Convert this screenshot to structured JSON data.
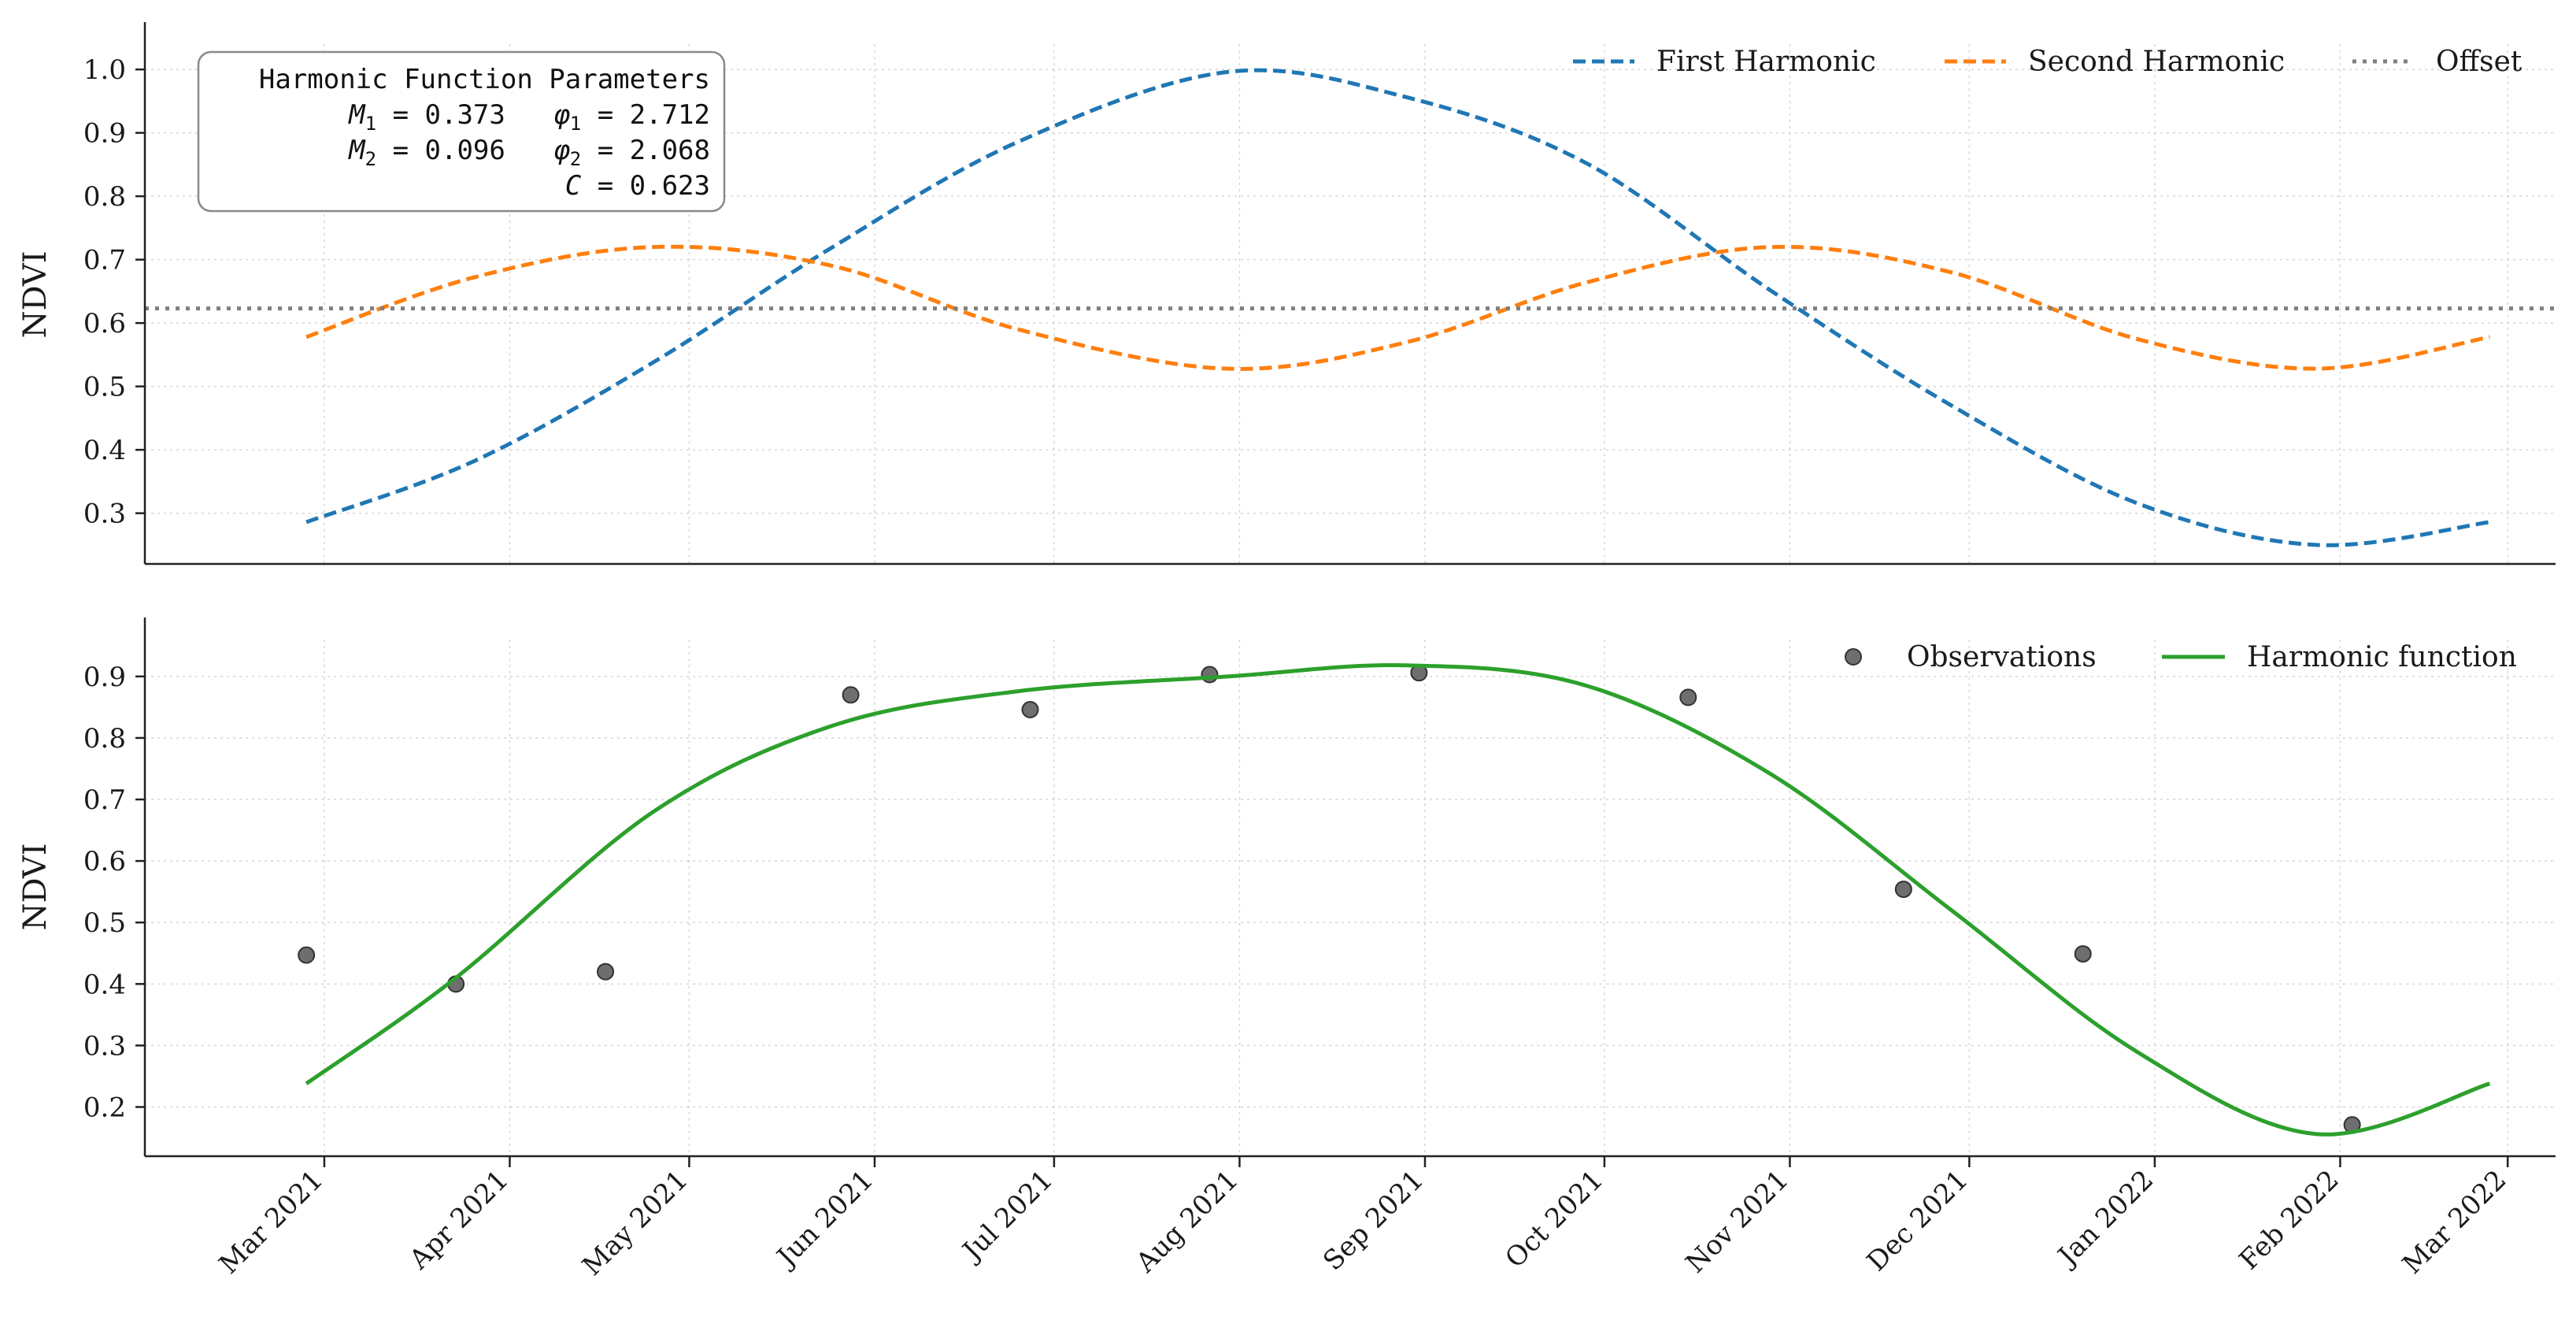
{
  "chart_data": [
    {
      "type": "line",
      "title": "",
      "xlabel": "",
      "ylabel": "NDVI",
      "ylim": [
        0.22,
        1.04
      ],
      "yticks": [
        0.3,
        0.4,
        0.5,
        0.6,
        0.7,
        0.8,
        0.9,
        1.0
      ],
      "ytick_labels": [
        "0.3",
        "0.4",
        "0.5",
        "0.6",
        "0.7",
        "0.8",
        "0.9",
        "1.0"
      ],
      "grid": true,
      "legend_position": "top-right",
      "x_start": "2021-02-26",
      "x_end": "2022-02-26",
      "series": [
        {
          "name": "First Harmonic",
          "style": "dashed",
          "color": "#1f77b4",
          "points": [
            [
              "2021-02-26",
              0.286
            ],
            [
              "2021-03-26",
              0.382
            ],
            [
              "2021-04-25",
              0.538
            ],
            [
              "2021-05-25",
              0.72
            ],
            [
              "2021-06-25",
              0.886
            ],
            [
              "2021-07-30",
              0.996
            ],
            [
              "2021-08-29",
              0.956
            ],
            [
              "2021-09-28",
              0.852
            ],
            [
              "2021-10-29",
              0.65
            ],
            [
              "2021-11-28",
              0.47
            ],
            [
              "2021-12-29",
              0.316
            ],
            [
              "2022-01-28",
              0.25
            ],
            [
              "2022-02-26",
              0.286
            ]
          ]
        },
        {
          "name": "Second Harmonic",
          "style": "dashed",
          "color": "#ff7f0e",
          "points": [
            [
              "2021-02-26",
              0.578
            ],
            [
              "2021-03-26",
              0.672
            ],
            [
              "2021-04-25",
              0.72
            ],
            [
              "2021-05-25",
              0.69
            ],
            [
              "2021-06-25",
              0.59
            ],
            [
              "2021-07-30",
              0.528
            ],
            [
              "2021-08-29",
              0.57
            ],
            [
              "2021-09-28",
              0.664
            ],
            [
              "2021-10-29",
              0.72
            ],
            [
              "2021-11-28",
              0.68
            ],
            [
              "2021-12-29",
              0.575
            ],
            [
              "2022-01-28",
              0.528
            ],
            [
              "2022-02-26",
              0.578
            ]
          ]
        },
        {
          "name": "Offset",
          "style": "dotted",
          "color": "#7f7f7f",
          "y_constant": 0.623
        }
      ],
      "annotation": {
        "title": "Harmonic Function Parameters",
        "line1": {
          "m_sym": "M",
          "m_sub": "1",
          "m_val": " = 0.373",
          "p_sym": "φ",
          "p_sub": "1",
          "p_val": " = 2.712"
        },
        "line2": {
          "m_sym": "M",
          "m_sub": "2",
          "m_val": " = 0.096",
          "p_sym": "φ",
          "p_sub": "2",
          "p_val": " = 2.068"
        },
        "line3": {
          "c_sym": "C",
          "c_val": " = 0.623"
        }
      }
    },
    {
      "type": "line",
      "title": "",
      "xlabel": "",
      "ylabel": "NDVI",
      "ylim": [
        0.12,
        0.96
      ],
      "yticks": [
        0.2,
        0.3,
        0.4,
        0.5,
        0.6,
        0.7,
        0.8,
        0.9
      ],
      "ytick_labels": [
        "0.2",
        "0.3",
        "0.4",
        "0.5",
        "0.6",
        "0.7",
        "0.8",
        "0.9"
      ],
      "grid": true,
      "legend_position": "top-right",
      "x_ticks": [
        "2021-03-01",
        "2021-04-01",
        "2021-05-01",
        "2021-06-01",
        "2021-07-01",
        "2021-08-01",
        "2021-09-01",
        "2021-10-01",
        "2021-11-01",
        "2021-12-01",
        "2022-01-01",
        "2022-02-01",
        "2022-03-01"
      ],
      "x_tick_labels": [
        "Mar 2021",
        "Apr 2021",
        "May 2021",
        "Jun 2021",
        "Jul 2021",
        "Aug 2021",
        "Sep 2021",
        "Oct 2021",
        "Nov 2021",
        "Dec 2021",
        "Jan 2022",
        "Feb 2022",
        "Mar 2022"
      ],
      "series": [
        {
          "name": "Observations",
          "style": "scatter",
          "color": "#555555",
          "points": [
            [
              "2021-02-26",
              0.447
            ],
            [
              "2021-03-23",
              0.4
            ],
            [
              "2021-04-17",
              0.42
            ],
            [
              "2021-05-28",
              0.87
            ],
            [
              "2021-06-27",
              0.846
            ],
            [
              "2021-07-27",
              0.903
            ],
            [
              "2021-08-31",
              0.906
            ],
            [
              "2021-10-15",
              0.866
            ],
            [
              "2021-11-20",
              0.554
            ],
            [
              "2021-12-20",
              0.449
            ],
            [
              "2022-02-03",
              0.171
            ]
          ]
        },
        {
          "name": "Harmonic function",
          "style": "solid",
          "color": "#2ca02c",
          "points": [
            [
              "2021-02-26",
              0.238
            ],
            [
              "2021-03-23",
              0.41
            ],
            [
              "2021-04-25",
              0.68
            ],
            [
              "2021-05-25",
              0.82
            ],
            [
              "2021-06-25",
              0.876
            ],
            [
              "2021-07-30",
              0.9
            ],
            [
              "2021-08-29",
              0.918
            ],
            [
              "2021-09-28",
              0.885
            ],
            [
              "2021-10-29",
              0.74
            ],
            [
              "2021-11-28",
              0.52
            ],
            [
              "2021-12-29",
              0.29
            ],
            [
              "2022-01-28",
              0.156
            ],
            [
              "2022-02-26",
              0.238
            ]
          ]
        }
      ]
    }
  ]
}
